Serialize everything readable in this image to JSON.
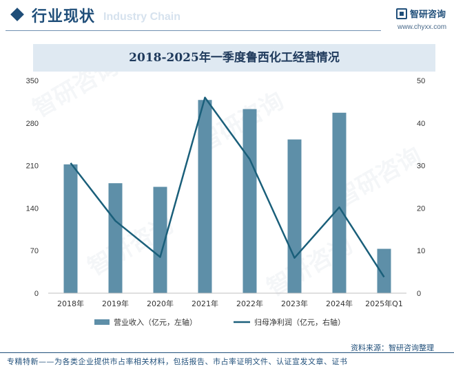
{
  "header": {
    "title": "行业现状",
    "ghost_text": "Industry Chain",
    "brand_name": "智研咨询",
    "brand_url": "www.chyxx.com"
  },
  "chart_data": {
    "type": "bar",
    "title": "2018-2025年一季度鲁西化工经营情况",
    "categories": [
      "2018年",
      "2019年",
      "2020年",
      "2021年",
      "2022年",
      "2023年",
      "2024年",
      "2025年Q1"
    ],
    "series": [
      {
        "name": "营业收入（亿元，左轴）",
        "type": "bar",
        "axis": "left",
        "color": "#5e8fa8",
        "values": [
          212,
          181,
          175,
          318,
          303,
          253,
          297,
          73
        ]
      },
      {
        "name": "归母净利润（亿元，右轴）",
        "type": "line",
        "axis": "right",
        "color": "#1a5f7a",
        "values": [
          30.6,
          17,
          8.5,
          46,
          31.5,
          8.3,
          20.2,
          3.8
        ]
      }
    ],
    "left_axis": {
      "ylim": [
        0,
        350
      ],
      "ticks": [
        "0",
        "70",
        "140",
        "210",
        "280",
        "350"
      ]
    },
    "right_axis": {
      "ylim": [
        0,
        50
      ],
      "ticks": [
        "0",
        "10",
        "20",
        "30",
        "40",
        "50"
      ]
    },
    "grid": false,
    "legend": "bottom-center"
  },
  "footer": {
    "source": "资料来源：智研咨询整理",
    "tagline": "专精特新——为各类企业提供市占率相关材料，包括报告、市占率证明文件、认证宣发文章、证书"
  }
}
